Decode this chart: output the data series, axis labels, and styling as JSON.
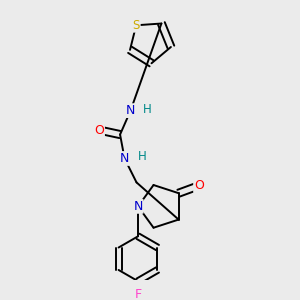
{
  "background_color": "#ebebeb",
  "bond_color": "#000000",
  "atom_colors": {
    "N": "#0000cc",
    "O": "#ff0000",
    "S": "#ccaa00",
    "F": "#ff44cc",
    "H": "#008888",
    "C": "#000000"
  }
}
